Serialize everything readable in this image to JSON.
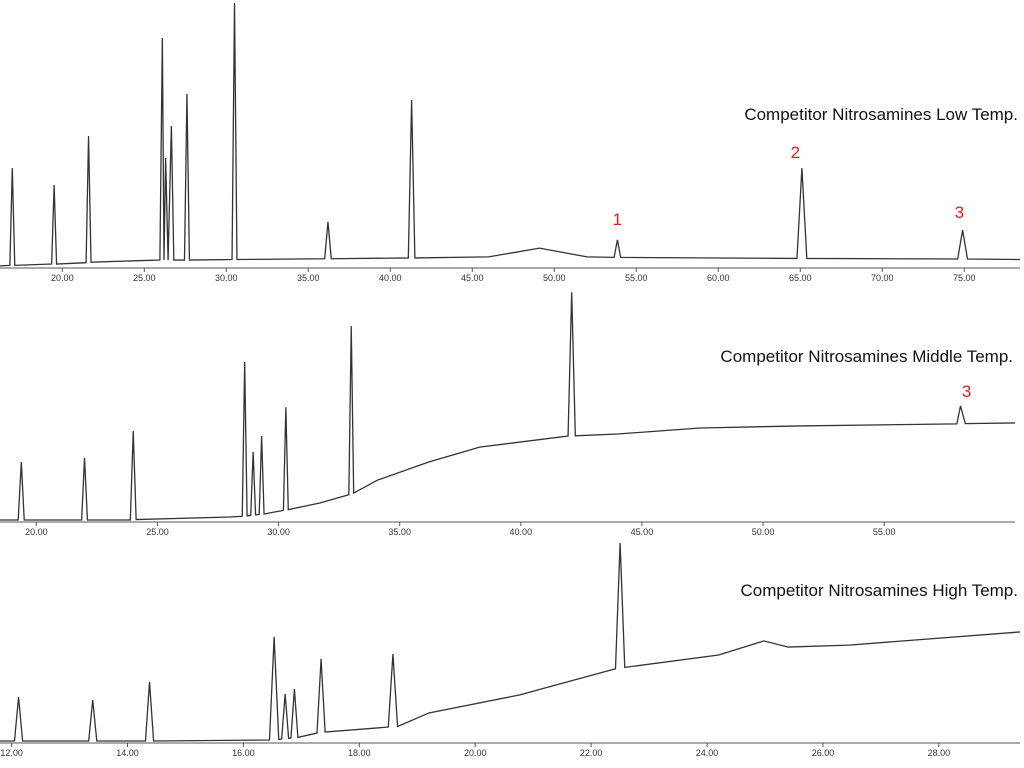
{
  "chart_data": [
    {
      "type": "line",
      "title": "Competitor Nitrosamines Low Temp.",
      "color": "#333333",
      "xlim": [
        16.2,
        78.4
      ],
      "ylim": [
        0,
        100
      ],
      "xticks": [
        {
          "value": 20,
          "label": "20.00"
        },
        {
          "value": 25,
          "label": "25.00"
        },
        {
          "value": 30,
          "label": "30.00"
        },
        {
          "value": 35,
          "label": "35.00"
        },
        {
          "value": 40,
          "label": "40.00"
        },
        {
          "value": 45,
          "label": "45.00"
        },
        {
          "value": 50,
          "label": "50.00"
        },
        {
          "value": 55,
          "label": "55.00"
        },
        {
          "value": 60,
          "label": "60.00"
        },
        {
          "value": 65,
          "label": "65.00"
        },
        {
          "value": 70,
          "label": "70.00"
        },
        {
          "value": 75,
          "label": "75.00"
        }
      ],
      "x": [
        16.2,
        16.8,
        16.95,
        17.1,
        19.35,
        19.5,
        19.65,
        21.45,
        21.6,
        21.75,
        25.95,
        26.1,
        26.2,
        26.3,
        26.45,
        26.65,
        26.8,
        27.45,
        27.6,
        27.75,
        30.35,
        30.5,
        30.65,
        36.0,
        36.2,
        36.4,
        41.1,
        41.3,
        41.5,
        46.0,
        49.1,
        52.0,
        53.65,
        53.85,
        54.05,
        64.8,
        65.1,
        65.4,
        74.6,
        74.9,
        75.2,
        78.4
      ],
      "values": [
        0.8,
        1.0,
        37.7,
        1.0,
        1.5,
        31.3,
        1.5,
        2.0,
        49.8,
        2.2,
        3.0,
        86.8,
        3.0,
        41.5,
        3.0,
        53.6,
        3.0,
        3.0,
        65.7,
        3.0,
        3.2,
        100,
        3.2,
        3.5,
        17.4,
        3.5,
        3.8,
        63.4,
        3.8,
        4.2,
        7.5,
        4.2,
        4.0,
        10.6,
        4.0,
        3.6,
        37.7,
        3.6,
        3.4,
        14.3,
        3.4,
        3.2
      ],
      "annotations": [
        {
          "text": "1",
          "x": 53.85,
          "y": 16.2,
          "color": "#e02020"
        },
        {
          "text": "2",
          "x": 64.7,
          "y": 41.5,
          "color": "#e02020"
        },
        {
          "text": "3",
          "x": 74.7,
          "y": 18.9,
          "color": "#e02020"
        }
      ]
    },
    {
      "type": "line",
      "title": "Competitor Nitrosamines Middle Temp.",
      "color": "#333333",
      "xlim": [
        18.5,
        60.4
      ],
      "ylim": [
        0,
        100
      ],
      "xticks": [
        {
          "value": 20,
          "label": "20.00"
        },
        {
          "value": 25,
          "label": "25.00"
        },
        {
          "value": 30,
          "label": "30.00"
        },
        {
          "value": 35,
          "label": "35.00"
        },
        {
          "value": 40,
          "label": "40.00"
        },
        {
          "value": 45,
          "label": "45.00"
        },
        {
          "value": 50,
          "label": "50.00"
        },
        {
          "value": 55,
          "label": "55.00"
        }
      ],
      "x": [
        18.5,
        19.25,
        19.38,
        19.5,
        21.87,
        21.99,
        22.11,
        23.88,
        24.0,
        24.12,
        28.0,
        28.5,
        28.6,
        28.7,
        28.85,
        28.95,
        29.05,
        29.2,
        29.3,
        29.4,
        30.2,
        30.3,
        30.4,
        31.7,
        32.9,
        33.0,
        33.1,
        34.1,
        36.2,
        38.3,
        41.95,
        42.1,
        42.25,
        44.0,
        47.4,
        51.5,
        58.0,
        58.15,
        58.35,
        60.4
      ],
      "values": [
        0,
        0,
        25.2,
        0,
        0,
        27,
        0,
        0,
        38.7,
        0.2,
        1.3,
        1.6,
        68.7,
        1.8,
        2.0,
        29.6,
        2.2,
        2.4,
        36.5,
        2.6,
        4.2,
        49,
        4.5,
        7.4,
        11.0,
        84.3,
        11.7,
        17.4,
        25.2,
        31.7,
        36.5,
        99,
        36.6,
        37.4,
        40,
        40.9,
        41.8,
        49.6,
        41.9,
        42.2
      ],
      "annotations": [
        {
          "text": "3",
          "x": 58.4,
          "y": 53.5,
          "color": "#e02020"
        }
      ]
    },
    {
      "type": "line",
      "title": "Competitor Nitrosamines High Temp.",
      "color": "#333333",
      "xlim": [
        11.8,
        29.4
      ],
      "ylim": [
        0,
        100
      ],
      "xticks": [
        {
          "value": 12,
          "label": "12.00"
        },
        {
          "value": 14,
          "label": "14.00"
        },
        {
          "value": 16,
          "label": "16.00"
        },
        {
          "value": 18,
          "label": "18.00"
        },
        {
          "value": 20,
          "label": "20.00"
        },
        {
          "value": 22,
          "label": "22.00"
        },
        {
          "value": 24,
          "label": "24.00"
        },
        {
          "value": 26,
          "label": "26.00"
        },
        {
          "value": 28,
          "label": "28.00"
        }
      ],
      "x": [
        11.8,
        12.05,
        12.12,
        12.19,
        13.33,
        13.4,
        13.47,
        14.31,
        14.38,
        14.45,
        16.45,
        16.53,
        16.61,
        16.66,
        16.72,
        16.78,
        16.82,
        16.88,
        16.94,
        17.27,
        17.34,
        17.41,
        18.5,
        18.58,
        18.66,
        19.2,
        20.76,
        22.42,
        22.5,
        22.58,
        24.2,
        24.98,
        25.4,
        26.45,
        29.4
      ],
      "values": [
        0.5,
        0.5,
        22.6,
        0.5,
        0.5,
        21.1,
        0.5,
        0.5,
        30.2,
        0.5,
        1,
        52.8,
        1.3,
        1.5,
        24.1,
        1.8,
        2,
        26.6,
        2.3,
        4.5,
        41.7,
        5,
        7.5,
        44.2,
        7.8,
        14.6,
        23.6,
        36.8,
        100,
        37.5,
        43.7,
        50.8,
        47.7,
        48.7,
        55.3
      ],
      "annotations": []
    }
  ]
}
